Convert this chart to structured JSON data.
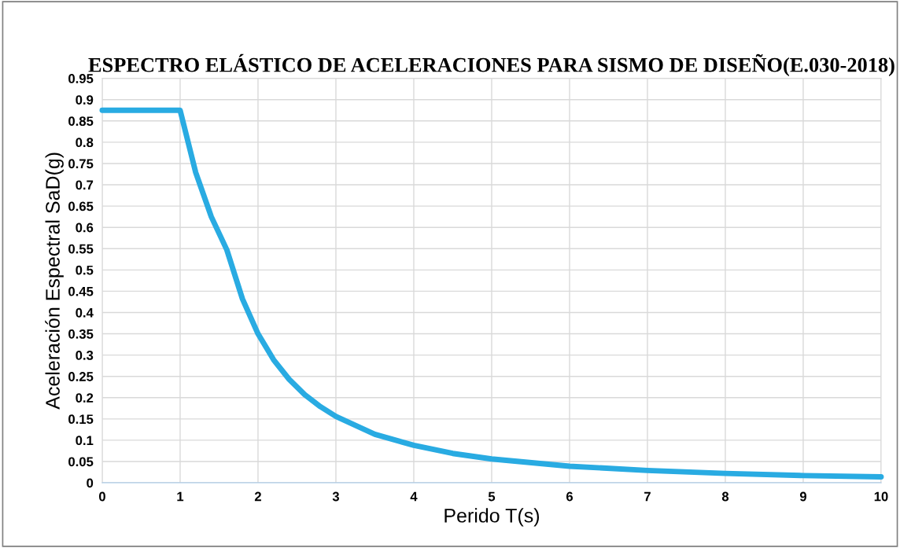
{
  "chart_data": {
    "type": "line",
    "title": "ESPECTRO ELÁSTICO DE ACELERACIONES PARA SISMO DE DISEÑO(E.030-2018)",
    "xlabel": "Perido T(s)",
    "ylabel": "Aceleración Espectral SaD(g)",
    "x": [
      0,
      1,
      1.2,
      1.4,
      1.6,
      1.8,
      2.0,
      2.2,
      2.4,
      2.6,
      2.8,
      3.0,
      3.5,
      4,
      4.5,
      5,
      6,
      7,
      8,
      9,
      10
    ],
    "series": [
      {
        "color": "#29abe2",
        "values": [
          0.875,
          0.875,
          0.729,
          0.625,
          0.547,
          0.432,
          0.35,
          0.289,
          0.243,
          0.207,
          0.179,
          0.156,
          0.114,
          0.088,
          0.069,
          0.056,
          0.039,
          0.029,
          0.022,
          0.017,
          0.014
        ]
      }
    ],
    "xlim": [
      0,
      10
    ],
    "xticks": [
      0,
      1,
      2,
      3,
      4,
      5,
      6,
      7,
      8,
      9,
      10
    ],
    "ylim": [
      0,
      0.95
    ],
    "yticks": [
      0,
      0.05,
      0.1,
      0.15,
      0.2,
      0.25,
      0.3,
      0.35,
      0.4,
      0.45,
      0.5,
      0.55,
      0.6,
      0.65,
      0.7,
      0.75,
      0.8,
      0.85,
      0.9,
      0.95
    ],
    "grid": true,
    "legend": false,
    "marker": "none",
    "line_style": "solid"
  }
}
